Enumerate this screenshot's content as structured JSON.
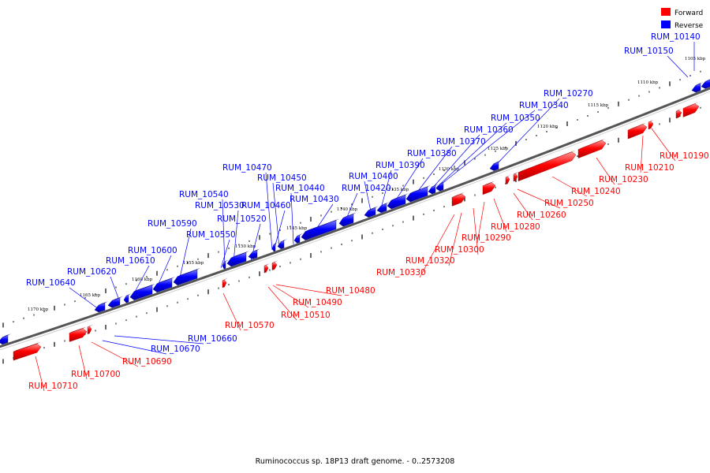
{
  "caption": "Ruminococcus sp. 18P13 draft genome. - 0..2573208",
  "legend": [
    {
      "label": "Forward",
      "color": "#ff0000"
    },
    {
      "label": "Reverse",
      "color": "#0000ff"
    }
  ],
  "colors": {
    "forward": "#ff0000",
    "reverse": "#0000ff",
    "backbone": "#666666"
  },
  "kbp_labels": [
    "1105 kbp",
    "1110 kbp",
    "1115 kbp",
    "1120 kbp",
    "1125 kbp",
    "1130 kbp",
    "1135 kbp",
    "1140 kbp",
    "1145 kbp",
    "1150 kbp",
    "1155 kbp",
    "1160 kbp",
    "1165 kbp",
    "1170 kbp"
  ],
  "reverse_genes": [
    "RUM_10140",
    "RUM_10150",
    "RUM_10270",
    "RUM_10340",
    "RUM_10350",
    "RUM_10360",
    "RUM_10370",
    "RUM_10380",
    "RUM_10390",
    "RUM_10400",
    "RUM_10420",
    "RUM_10430",
    "RUM_10440",
    "RUM_10450",
    "RUM_10460",
    "RUM_10470",
    "RUM_10520",
    "RUM_10530",
    "RUM_10540",
    "RUM_10550",
    "RUM_10590",
    "RUM_10600",
    "RUM_10610",
    "RUM_10620",
    "RUM_10640",
    "RUM_10660",
    "RUM_10670"
  ],
  "forward_genes": [
    "RUM_10190",
    "RUM_10210",
    "RUM_10230",
    "RUM_10240",
    "RUM_10250",
    "RUM_10260",
    "RUM_10280",
    "RUM_10290",
    "RUM_10300",
    "RUM_10320",
    "RUM_10330",
    "RUM_10480",
    "RUM_10490",
    "RUM_10510",
    "RUM_10570",
    "RUM_10690",
    "RUM_10700",
    "RUM_10710"
  ]
}
